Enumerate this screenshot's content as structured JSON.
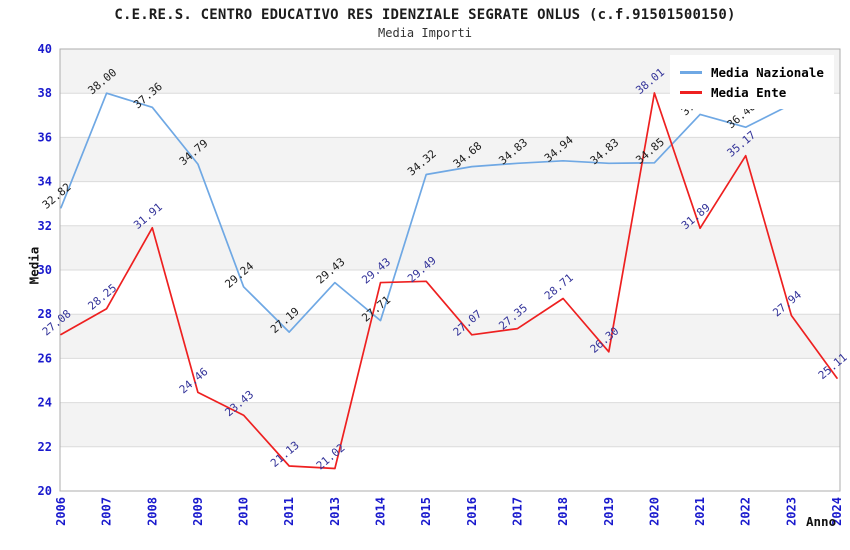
{
  "chart_data": {
    "type": "line",
    "title": "C.E.RE.S. CENTRO EDUCATIVO RES IDENZIALE SEGRATE ONLUS (c.f.91501500150)",
    "subtitle": "Media Importi",
    "xlabel": "Anno",
    "ylabel": "Media",
    "ylim": [
      20,
      40
    ],
    "ytick_step": 2,
    "grid": "horizontal-bands-alternating",
    "legend_position": "top-right",
    "band_color": "#F3F3F3",
    "gridline_color": "#DBDBDB",
    "border_color": "#ADADAD",
    "tick_label_color": "#1A1ACD",
    "categories": [
      "2006",
      "2007",
      "2008",
      "2009",
      "2010",
      "2011",
      "2013",
      "2014",
      "2015",
      "2016",
      "2017",
      "2018",
      "2019",
      "2020",
      "2021",
      "2022",
      "2023",
      "2024"
    ],
    "series": [
      {
        "name": "Media Nazionale",
        "color": "#6FA8E4",
        "label_color": "#1C1C1C",
        "values": [
          32.82,
          38.0,
          37.36,
          34.79,
          29.24,
          27.19,
          29.43,
          27.71,
          34.32,
          34.68,
          34.83,
          34.94,
          34.83,
          34.85,
          37.04,
          36.46,
          37.5,
          null
        ],
        "labels": [
          "32.82",
          "38.00",
          "37.36",
          "34.79",
          "29.24",
          "27.19",
          "29.43",
          "27.71",
          "34.32",
          "34.68",
          "34.83",
          "34.94",
          "34.83",
          "34.85",
          "37.04",
          "36.46",
          "",
          ""
        ]
      },
      {
        "name": "Media Ente",
        "color": "#EE2020",
        "label_color": "#333399",
        "values": [
          27.08,
          28.25,
          31.91,
          24.46,
          23.43,
          21.13,
          21.02,
          29.43,
          29.49,
          27.07,
          27.35,
          28.71,
          26.3,
          38.01,
          31.89,
          35.17,
          27.94,
          25.11
        ],
        "labels": [
          "27.08",
          "28.25",
          "31.91",
          "24.46",
          "23.43",
          "21.13",
          "21.02",
          "29.43",
          "29.49",
          "27.07",
          "27.35",
          "28.71",
          "26.30",
          "38.01",
          "31.89",
          "35.17",
          "27.94",
          "25.11"
        ]
      }
    ]
  }
}
